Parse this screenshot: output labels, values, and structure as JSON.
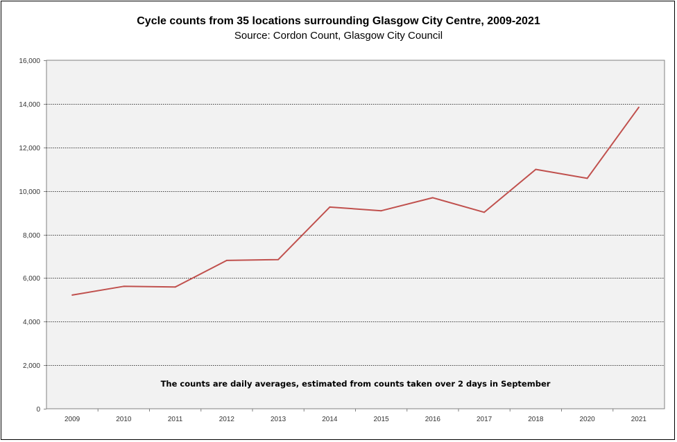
{
  "chart_data": {
    "type": "line",
    "title": "Cycle counts from 35 locations surrounding Glasgow City Centre, 2009-2021",
    "subtitle": "Source: Cordon Count, Glasgow City Council",
    "xlabel": "",
    "ylabel": "",
    "categories": [
      "2009",
      "2010",
      "2011",
      "2012",
      "2013",
      "2014",
      "2015",
      "2016",
      "2017",
      "2018",
      "2020",
      "2021"
    ],
    "series": [
      {
        "values": [
          5220,
          5620,
          5590,
          6810,
          6850,
          9260,
          9090,
          9690,
          9020,
          10990,
          10580,
          13840
        ],
        "color": "#c0504d"
      }
    ],
    "ylim": [
      0,
      16000
    ],
    "yticks": [
      0,
      2000,
      4000,
      6000,
      8000,
      10000,
      12000,
      14000,
      16000
    ],
    "ytick_labels": [
      "0",
      "2,000",
      "4,000",
      "6,000",
      "8,000",
      "10,000",
      "12,000",
      "14,000",
      "16,000"
    ],
    "grid": true,
    "legend": "none",
    "annotation": "The counts are daily averages, estimated from counts taken over 2 days in September",
    "plot_background": "#f2f2f2"
  }
}
